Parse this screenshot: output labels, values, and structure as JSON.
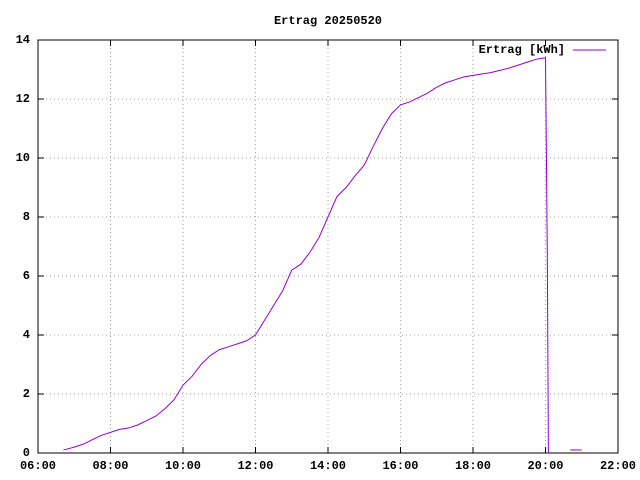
{
  "chart_data": {
    "type": "line",
    "title": "Ertrag 20250520",
    "x": [
      6.7,
      7.0,
      7.25,
      7.5,
      7.75,
      8.0,
      8.25,
      8.5,
      8.75,
      9.0,
      9.25,
      9.5,
      9.75,
      10.0,
      10.25,
      10.5,
      10.75,
      11.0,
      11.25,
      11.5,
      11.75,
      12.0,
      12.25,
      12.5,
      12.75,
      13.0,
      13.25,
      13.5,
      13.75,
      14.0,
      14.25,
      14.5,
      14.75,
      15.0,
      15.25,
      15.5,
      15.75,
      16.0,
      16.25,
      16.5,
      16.75,
      17.0,
      17.25,
      17.5,
      17.75,
      18.0,
      18.5,
      19.0,
      19.5,
      19.75,
      20.0,
      20.05,
      20.08,
      20.4,
      20.68,
      21.0
    ],
    "series": [
      {
        "name": "Ertrag [kWh]",
        "color": "#9400d3",
        "values": [
          0.1,
          0.2,
          0.3,
          0.45,
          0.6,
          0.7,
          0.8,
          0.85,
          0.95,
          1.1,
          1.25,
          1.5,
          1.8,
          2.3,
          2.6,
          3.0,
          3.3,
          3.5,
          3.6,
          3.7,
          3.8,
          4.0,
          4.5,
          5.0,
          5.5,
          6.2,
          6.4,
          6.8,
          7.3,
          8.0,
          8.7,
          9.0,
          9.4,
          9.76,
          10.4,
          11.0,
          11.5,
          11.8,
          11.9,
          12.05,
          12.2,
          12.4,
          12.55,
          12.65,
          12.75,
          12.8,
          12.9,
          13.05,
          13.25,
          13.35,
          13.4,
          6.7,
          0,
          null,
          0.1,
          0.1
        ]
      }
    ],
    "xlim": [
      6,
      22
    ],
    "xticks": [
      {
        "value": 6,
        "label": "06:00"
      },
      {
        "value": 8,
        "label": "08:00"
      },
      {
        "value": 10,
        "label": "10:00"
      },
      {
        "value": 12,
        "label": "12:00"
      },
      {
        "value": 14,
        "label": "14:00"
      },
      {
        "value": 16,
        "label": "16:00"
      },
      {
        "value": 18,
        "label": "18:00"
      },
      {
        "value": 20,
        "label": "20:00"
      },
      {
        "value": 22,
        "label": "22:00"
      }
    ],
    "ylim": [
      0,
      14
    ],
    "yticks": [
      0,
      2,
      4,
      6,
      8,
      10,
      12,
      14
    ],
    "grid": true,
    "legend": "top-right"
  }
}
